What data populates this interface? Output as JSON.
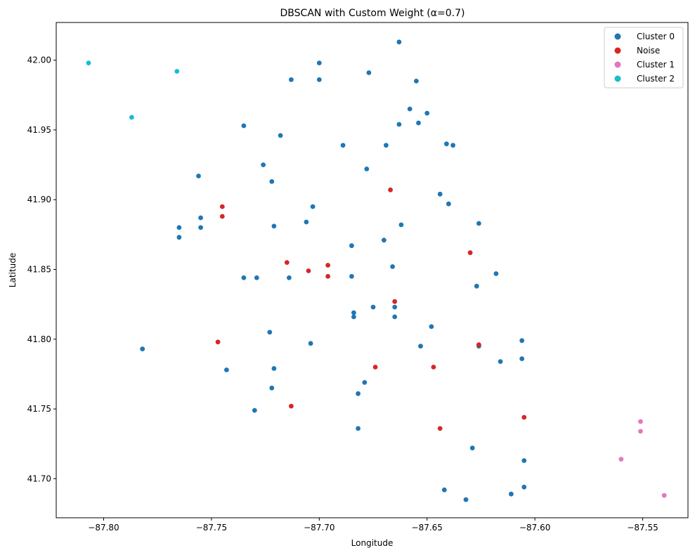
{
  "chart_data": {
    "type": "scatter",
    "title": "DBSCAN with Custom Weight (α=0.7)",
    "xlabel": "Longitude",
    "ylabel": "Latitude",
    "xlim": [
      -87.822,
      -87.529
    ],
    "ylim": [
      41.672,
      42.027
    ],
    "xticks": [
      -87.8,
      -87.75,
      -87.7,
      -87.65,
      -87.6,
      -87.55
    ],
    "xtick_labels": [
      "−87.80",
      "−87.75",
      "−87.70",
      "−87.65",
      "−87.60",
      "−87.55"
    ],
    "yticks": [
      41.7,
      41.75,
      41.8,
      41.85,
      41.9,
      41.95,
      42.0
    ],
    "ytick_labels": [
      "41.70",
      "41.75",
      "41.80",
      "41.85",
      "41.90",
      "41.95",
      "42.00"
    ],
    "grid": false,
    "legend_position": "top-right",
    "series": [
      {
        "name": "Cluster 0",
        "color": "#1f77b4",
        "points": [
          [
            -87.663,
            42.013
          ],
          [
            -87.7,
            41.998
          ],
          [
            -87.677,
            41.991
          ],
          [
            -87.713,
            41.986
          ],
          [
            -87.7,
            41.986
          ],
          [
            -87.655,
            41.985
          ],
          [
            -87.658,
            41.965
          ],
          [
            -87.65,
            41.962
          ],
          [
            -87.663,
            41.954
          ],
          [
            -87.654,
            41.955
          ],
          [
            -87.735,
            41.953
          ],
          [
            -87.718,
            41.946
          ],
          [
            -87.689,
            41.939
          ],
          [
            -87.669,
            41.939
          ],
          [
            -87.641,
            41.94
          ],
          [
            -87.638,
            41.939
          ],
          [
            -87.726,
            41.925
          ],
          [
            -87.678,
            41.922
          ],
          [
            -87.756,
            41.917
          ],
          [
            -87.722,
            41.913
          ],
          [
            -87.644,
            41.904
          ],
          [
            -87.64,
            41.897
          ],
          [
            -87.703,
            41.895
          ],
          [
            -87.755,
            41.887
          ],
          [
            -87.706,
            41.884
          ],
          [
            -87.626,
            41.883
          ],
          [
            -87.662,
            41.882
          ],
          [
            -87.721,
            41.881
          ],
          [
            -87.765,
            41.88
          ],
          [
            -87.755,
            41.88
          ],
          [
            -87.765,
            41.873
          ],
          [
            -87.67,
            41.871
          ],
          [
            -87.685,
            41.867
          ],
          [
            -87.666,
            41.852
          ],
          [
            -87.618,
            41.847
          ],
          [
            -87.685,
            41.845
          ],
          [
            -87.735,
            41.844
          ],
          [
            -87.729,
            41.844
          ],
          [
            -87.714,
            41.844
          ],
          [
            -87.627,
            41.838
          ],
          [
            -87.665,
            41.823
          ],
          [
            -87.675,
            41.823
          ],
          [
            -87.684,
            41.819
          ],
          [
            -87.684,
            41.816
          ],
          [
            -87.665,
            41.816
          ],
          [
            -87.648,
            41.809
          ],
          [
            -87.723,
            41.805
          ],
          [
            -87.606,
            41.799
          ],
          [
            -87.704,
            41.797
          ],
          [
            -87.653,
            41.795
          ],
          [
            -87.626,
            41.795
          ],
          [
            -87.782,
            41.793
          ],
          [
            -87.606,
            41.786
          ],
          [
            -87.616,
            41.784
          ],
          [
            -87.721,
            41.779
          ],
          [
            -87.743,
            41.778
          ],
          [
            -87.679,
            41.769
          ],
          [
            -87.722,
            41.765
          ],
          [
            -87.682,
            41.761
          ],
          [
            -87.73,
            41.749
          ],
          [
            -87.682,
            41.736
          ],
          [
            -87.629,
            41.722
          ],
          [
            -87.605,
            41.713
          ],
          [
            -87.605,
            41.694
          ],
          [
            -87.642,
            41.692
          ],
          [
            -87.611,
            41.689
          ],
          [
            -87.632,
            41.685
          ]
        ]
      },
      {
        "name": "Noise",
        "color": "#d62728",
        "points": [
          [
            -87.667,
            41.907
          ],
          [
            -87.745,
            41.895
          ],
          [
            -87.745,
            41.888
          ],
          [
            -87.63,
            41.862
          ],
          [
            -87.715,
            41.855
          ],
          [
            -87.696,
            41.853
          ],
          [
            -87.705,
            41.849
          ],
          [
            -87.696,
            41.845
          ],
          [
            -87.665,
            41.827
          ],
          [
            -87.747,
            41.798
          ],
          [
            -87.626,
            41.796
          ],
          [
            -87.674,
            41.78
          ],
          [
            -87.647,
            41.78
          ],
          [
            -87.713,
            41.752
          ],
          [
            -87.605,
            41.744
          ],
          [
            -87.644,
            41.736
          ]
        ]
      },
      {
        "name": "Cluster 1",
        "color": "#e377c2",
        "points": [
          [
            -87.551,
            41.741
          ],
          [
            -87.551,
            41.734
          ],
          [
            -87.56,
            41.714
          ],
          [
            -87.54,
            41.688
          ]
        ]
      },
      {
        "name": "Cluster 2",
        "color": "#17becf",
        "points": [
          [
            -87.807,
            41.998
          ],
          [
            -87.766,
            41.992
          ],
          [
            -87.787,
            41.959
          ]
        ]
      }
    ]
  }
}
